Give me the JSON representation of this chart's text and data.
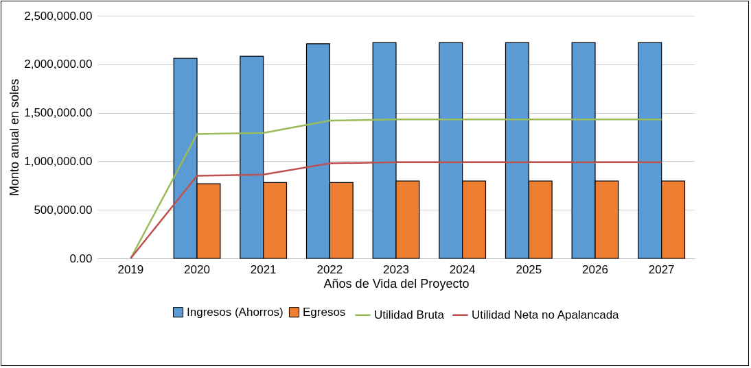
{
  "chart_data": {
    "type": "bar",
    "xlabel": "Años de Vida del Proyecto",
    "ylabel": "Monto anual en soles",
    "categories": [
      "2019",
      "2020",
      "2021",
      "2022",
      "2023",
      "2024",
      "2025",
      "2026",
      "2027"
    ],
    "series": [
      {
        "name": "Ingresos (Ahorros)",
        "color": "#5b9bd5",
        "values": [
          null,
          2061000,
          2083000,
          2212000,
          2224000,
          2224000,
          2224000,
          2224000,
          2224000
        ]
      },
      {
        "name": "Egresos",
        "color": "#ed7d31",
        "values": [
          null,
          769000,
          781000,
          781000,
          797000,
          797000,
          797000,
          797000,
          797000
        ]
      },
      {
        "name": "Utilidad Bruta",
        "type": "line",
        "color": "#9bbb59",
        "values": [
          0,
          1281000,
          1292000,
          1420000,
          1432000,
          1432000,
          1432000,
          1432000,
          1432000
        ]
      },
      {
        "name": "Utilidad Neta no Apalancada",
        "type": "line",
        "color": "#c0504d",
        "values": [
          0,
          851000,
          863000,
          979000,
          991000,
          991000,
          991000,
          991000,
          991000
        ]
      }
    ],
    "ylim": [
      0,
      2500000
    ],
    "yticks": [
      {
        "value": 0,
        "label": "0.00"
      },
      {
        "value": 500000,
        "label": "500,000.00"
      },
      {
        "value": 1000000,
        "label": "1,000,000.00"
      },
      {
        "value": 1500000,
        "label": "1,500,000.00"
      },
      {
        "value": 2000000,
        "label": "2,000,000.00"
      },
      {
        "value": 2500000,
        "label": "2,500,000.00"
      }
    ],
    "grid": "y",
    "legend": "bottom",
    "marker": "none"
  }
}
